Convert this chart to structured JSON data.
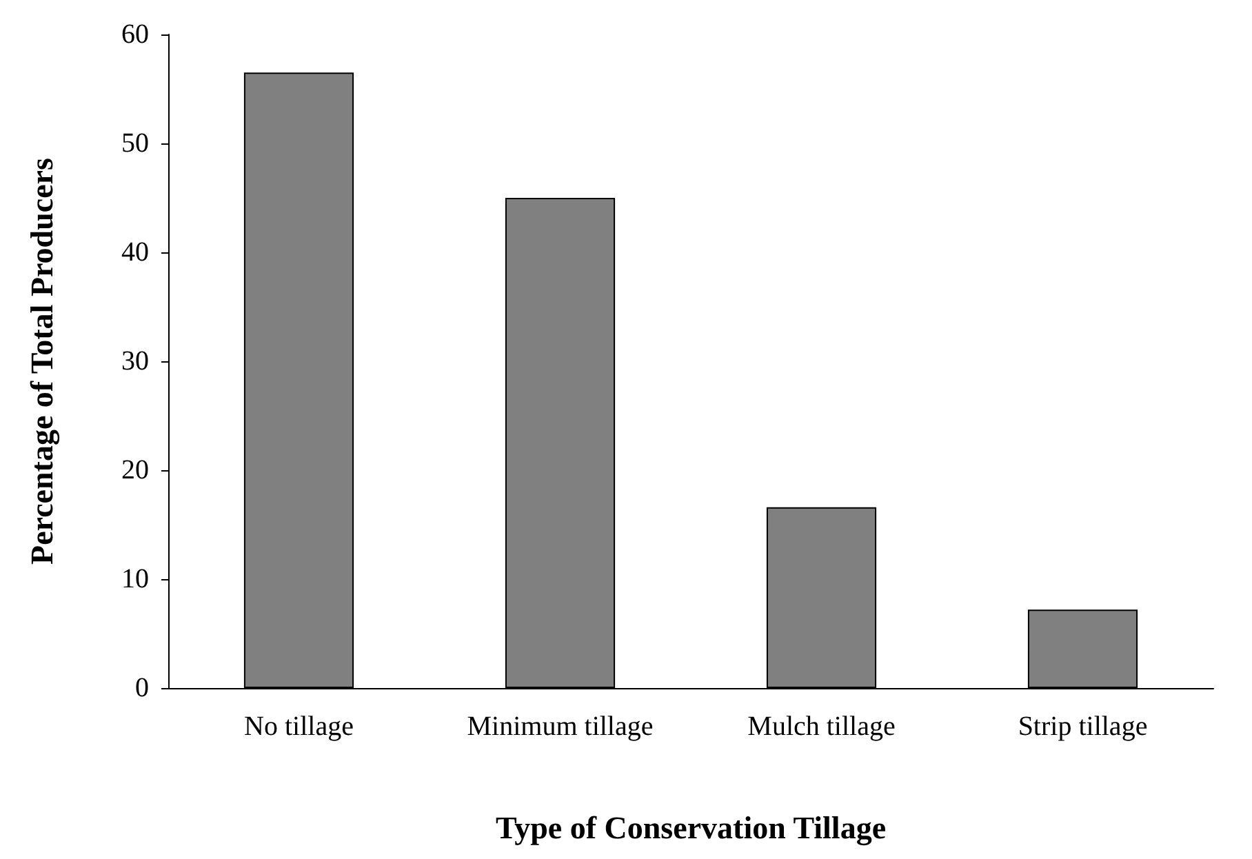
{
  "chart_data": {
    "type": "bar",
    "xlabel": "Type of Conservation Tillage",
    "ylabel": "Percentage of Total Producers",
    "categories": [
      "No tillage",
      "Minimum tillage",
      "Mulch tillage",
      "Strip tillage"
    ],
    "values": [
      56.5,
      45,
      16.6,
      7.2
    ],
    "color": "#808080",
    "ylim": [
      0,
      60
    ],
    "yticks": [
      0,
      10,
      20,
      30,
      40,
      50,
      60
    ],
    "grid": false
  }
}
